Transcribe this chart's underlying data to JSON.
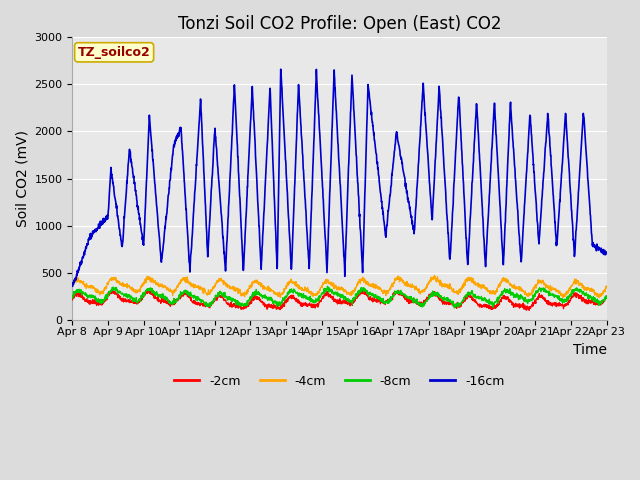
{
  "title": "Tonzi Soil CO2 Profile: Open (East) CO2",
  "ylabel": "Soil CO2 (mV)",
  "xlabel": "Time",
  "annotation_text": "TZ_soilco2",
  "annotation_bg": "#FFFFCC",
  "annotation_border": "#CCAA00",
  "annotation_text_color": "#990000",
  "ylim": [
    0,
    3000
  ],
  "fig_bg": "#DCDCDC",
  "plot_bg": "#E8E8E8",
  "line_colors": {
    "-2cm": "#FF0000",
    "-4cm": "#FFA500",
    "-8cm": "#00CC00",
    "-16cm": "#0000CC"
  },
  "legend_labels": [
    "-2cm",
    "-4cm",
    "-8cm",
    "-16cm"
  ],
  "xtick_labels": [
    "Apr 8",
    "Apr 9",
    "Apr 10",
    "Apr 11",
    "Apr 12",
    "Apr 13",
    "Apr 14",
    "Apr 15",
    "Apr 16",
    "Apr 17",
    "Apr 18",
    "Apr 19",
    "Apr 20",
    "Apr 21",
    "Apr 22",
    "Apr 23"
  ],
  "title_fontsize": 12,
  "axis_label_fontsize": 10,
  "tick_fontsize": 8,
  "blue_peaks": [
    1.0,
    1.08,
    1.6,
    2.16,
    2.84,
    3.05,
    3.6,
    4.0,
    4.55,
    5.05,
    5.55,
    5.85,
    6.35,
    6.85,
    7.35,
    7.85,
    8.3,
    9.1,
    9.85,
    10.3,
    10.85,
    11.35,
    11.85,
    12.3,
    12.85,
    13.35,
    13.85,
    14.35
  ],
  "blue_peak_vals": [
    1100,
    1600,
    1820,
    2160,
    1840,
    2040,
    2350,
    2040,
    2500,
    2480,
    2470,
    2680,
    2500,
    2640,
    2650,
    2600,
    2500,
    2000,
    2500,
    2480,
    2410,
    2310,
    2310,
    2310,
    2190,
    2200,
    2200,
    2220
  ],
  "blue_troughs": [
    0,
    0.5,
    1.4,
    2.0,
    2.5,
    3.3,
    3.8,
    4.3,
    4.8,
    5.3,
    5.75,
    6.15,
    6.65,
    7.15,
    7.65,
    8.15,
    8.8,
    9.6,
    10.1,
    10.6,
    11.1,
    11.6,
    12.1,
    12.6,
    13.1,
    13.6,
    14.1,
    14.6,
    15.0
  ],
  "blue_trough_vals": [
    350,
    890,
    760,
    780,
    600,
    510,
    670,
    510,
    500,
    530,
    510,
    500,
    530,
    510,
    500,
    500,
    880,
    910,
    1040,
    600,
    570,
    550,
    560,
    600,
    800,
    760,
    660,
    800,
    700
  ]
}
